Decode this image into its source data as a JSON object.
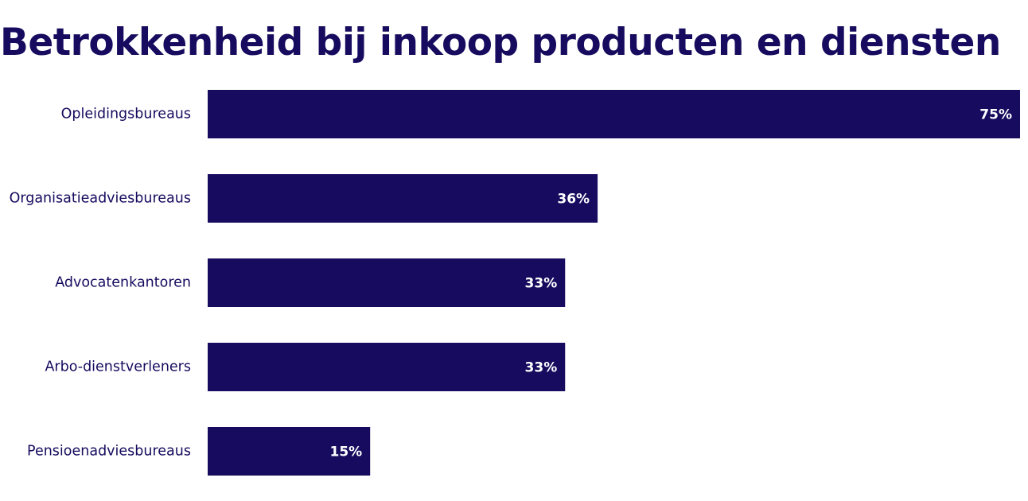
{
  "chart_data": {
    "type": "bar",
    "orientation": "horizontal",
    "title": "Betrokkenheid bij inkoop producten en diensten",
    "categories": [
      "Opleidingsbureaus",
      "Organisatieadviesbureaus",
      "Advocatenkantoren",
      "Arbo-dienstverleners",
      "Pensioenadviesbureaus"
    ],
    "values": [
      75,
      36,
      33,
      33,
      15
    ],
    "value_labels": [
      "75%",
      "36%",
      "33%",
      "33%",
      "15%"
    ],
    "xlim": [
      0,
      75
    ],
    "grid": false,
    "legend": "none",
    "bar_color": "#160b5e",
    "label_color": "#160b5e",
    "value_label_color": "#ffffff"
  }
}
